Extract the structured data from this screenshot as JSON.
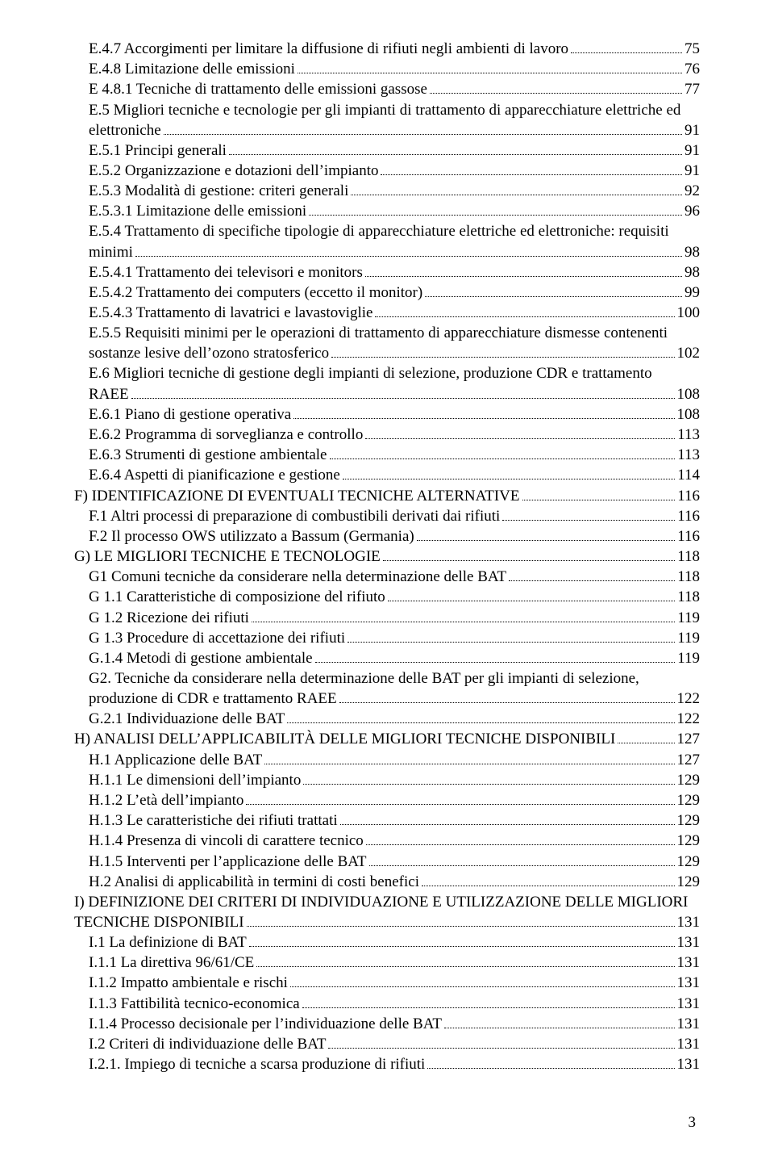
{
  "page_number": "3",
  "entries": [
    {
      "indent": 1,
      "text": "E.4.7 Accorgimenti per limitare la diffusione di rifiuti negli ambienti di lavoro",
      "page": "75"
    },
    {
      "indent": 1,
      "text": "E.4.8 Limitazione delle emissioni",
      "page": "76"
    },
    {
      "indent": 1,
      "text": "E 4.8.1 Tecniche di trattamento delle emissioni gassose",
      "page": "77"
    },
    {
      "indent": 1,
      "text_lines": [
        "E.5 Migliori tecniche e tecnologie per gli impianti di trattamento di apparecchiature elettriche ed",
        "elettroniche"
      ],
      "page": "91"
    },
    {
      "indent": 1,
      "text": "E.5.1 Principi generali",
      "page": "91"
    },
    {
      "indent": 1,
      "text": "E.5.2 Organizzazione e dotazioni dell’impianto",
      "page": "91"
    },
    {
      "indent": 1,
      "text": "E.5.3 Modalità di gestione: criteri generali",
      "page": "92"
    },
    {
      "indent": 1,
      "text": "E.5.3.1 Limitazione delle emissioni",
      "page": "96"
    },
    {
      "indent": 1,
      "text_lines": [
        "E.5.4 Trattamento di specifiche tipologie di apparecchiature elettriche ed elettroniche: requisiti",
        "minimi"
      ],
      "page": "98"
    },
    {
      "indent": 1,
      "text": "E.5.4.1 Trattamento dei televisori e monitors",
      "page": "98"
    },
    {
      "indent": 1,
      "text": "E.5.4.2 Trattamento dei computers (eccetto il monitor)",
      "page": "99"
    },
    {
      "indent": 1,
      "text": "E.5.4.3 Trattamento di lavatrici e lavastoviglie",
      "page": "100"
    },
    {
      "indent": 1,
      "text_lines": [
        "E.5.5 Requisiti minimi per le operazioni di trattamento di apparecchiature dismesse contenenti",
        "sostanze lesive dell’ozono stratosferico"
      ],
      "page": "102"
    },
    {
      "indent": 1,
      "text_lines": [
        "E.6 Migliori tecniche di gestione degli impianti di selezione, produzione CDR e trattamento",
        "RAEE"
      ],
      "page": "108"
    },
    {
      "indent": 1,
      "text": "E.6.1 Piano di gestione operativa",
      "page": "108"
    },
    {
      "indent": 1,
      "text": "E.6.2 Programma di sorveglianza e controllo",
      "page": "113"
    },
    {
      "indent": 1,
      "text": "E.6.3 Strumenti di gestione ambientale",
      "page": "113"
    },
    {
      "indent": 1,
      "text": "E.6.4 Aspetti di pianificazione e gestione",
      "page": "114"
    },
    {
      "indent": 0,
      "text": "F) IDENTIFICAZIONE DI EVENTUALI TECNICHE ALTERNATIVE",
      "page": "116"
    },
    {
      "indent": 1,
      "text": "F.1 Altri processi di preparazione di combustibili derivati dai rifiuti",
      "page": "116"
    },
    {
      "indent": 1,
      "text": "F.2 Il processo OWS utilizzato a Bassum (Germania)",
      "page": "116"
    },
    {
      "indent": 0,
      "text": "G) LE MIGLIORI TECNICHE E TECNOLOGIE",
      "page": "118"
    },
    {
      "indent": 1,
      "text": "G1 Comuni tecniche da considerare nella determinazione delle BAT",
      "page": "118"
    },
    {
      "indent": 1,
      "text": "G 1.1 Caratteristiche di composizione del rifiuto",
      "page": "118"
    },
    {
      "indent": 1,
      "text": "G 1.2 Ricezione dei rifiuti",
      "page": "119"
    },
    {
      "indent": 1,
      "text": "G 1.3 Procedure di accettazione dei rifiuti",
      "page": "119"
    },
    {
      "indent": 1,
      "text": "G.1.4 Metodi di gestione ambientale",
      "page": "119"
    },
    {
      "indent": 1,
      "text_lines": [
        "G2. Tecniche da considerare nella determinazione delle BAT per gli impianti di selezione,",
        "produzione di CDR e trattamento RAEE"
      ],
      "page": "122"
    },
    {
      "indent": 1,
      "text": "G.2.1 Individuazione delle BAT",
      "page": "122"
    },
    {
      "indent": 0,
      "text": "H) ANALISI DELL’APPLICABILITÀ DELLE MIGLIORI TECNICHE DISPONIBILI",
      "page": "127"
    },
    {
      "indent": 1,
      "text": "H.1 Applicazione delle BAT",
      "page": "127"
    },
    {
      "indent": 1,
      "text": "H.1.1 Le dimensioni dell’impianto",
      "page": "129"
    },
    {
      "indent": 1,
      "text": "H.1.2 L’età dell’impianto",
      "page": "129"
    },
    {
      "indent": 1,
      "text": "H.1.3 Le caratteristiche dei rifiuti trattati",
      "page": "129"
    },
    {
      "indent": 1,
      "text": "H.1.4 Presenza di vincoli di carattere tecnico",
      "page": "129"
    },
    {
      "indent": 1,
      "text": "H.1.5 Interventi per l’applicazione delle BAT",
      "page": "129"
    },
    {
      "indent": 1,
      "text": "H.2 Analisi di applicabilità in termini di costi benefici",
      "page": "129"
    },
    {
      "indent": 0,
      "text_lines": [
        "I) DEFINIZIONE DEI CRITERI DI INDIVIDUAZIONE E UTILIZZAZIONE DELLE MIGLIORI",
        "TECNICHE DISPONIBILI"
      ],
      "page": "131"
    },
    {
      "indent": 1,
      "text": "I.1 La definizione di BAT",
      "page": "131"
    },
    {
      "indent": 1,
      "text": "I.1.1 La direttiva 96/61/CE",
      "page": "131"
    },
    {
      "indent": 1,
      "text": "I.1.2 Impatto ambientale e rischi",
      "page": "131"
    },
    {
      "indent": 1,
      "text": "I.1.3 Fattibilità tecnico-economica",
      "page": "131"
    },
    {
      "indent": 1,
      "text": "I.1.4 Processo decisionale per l’individuazione delle BAT",
      "page": "131"
    },
    {
      "indent": 1,
      "text": "I.2 Criteri di individuazione delle BAT",
      "page": "131"
    },
    {
      "indent": 1,
      "text": "I.2.1. Impiego di tecniche a scarsa produzione di rifiuti",
      "page": "131"
    }
  ]
}
